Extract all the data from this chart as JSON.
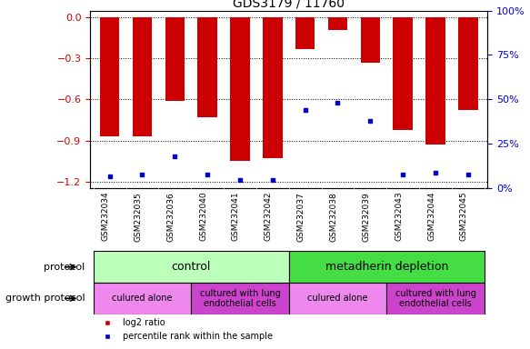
{
  "title": "GDS3179 / 11760",
  "samples": [
    "GSM232034",
    "GSM232035",
    "GSM232036",
    "GSM232040",
    "GSM232041",
    "GSM232042",
    "GSM232037",
    "GSM232038",
    "GSM232039",
    "GSM232043",
    "GSM232044",
    "GSM232045"
  ],
  "log2_ratio": [
    -0.87,
    -0.87,
    -0.61,
    -0.73,
    -1.05,
    -1.03,
    -0.23,
    -0.09,
    -0.33,
    -0.82,
    -0.93,
    -0.68
  ],
  "percentile_rank": [
    0.07,
    0.08,
    0.18,
    0.08,
    0.05,
    0.05,
    0.44,
    0.48,
    0.38,
    0.08,
    0.09,
    0.08
  ],
  "bar_color": "#cc0000",
  "dot_color": "#0000cc",
  "ylim_left": [
    -1.25,
    0.05
  ],
  "yticks_left": [
    0.0,
    -0.3,
    -0.6,
    -0.9,
    -1.2
  ],
  "ylim_right": [
    0.0,
    1.0
  ],
  "yticks_right": [
    0.0,
    0.25,
    0.5,
    0.75,
    1.0
  ],
  "ytick_labels_right": [
    "0%",
    "25%",
    "50%",
    "75%",
    "100%"
  ],
  "left_axis_color": "#cc0000",
  "right_axis_color": "#0000cc",
  "protocol_control_color": "#bbffbb",
  "protocol_metadherin_color": "#44dd44",
  "growth_alone_color": "#ee88ee",
  "growth_lung_color": "#cc44cc",
  "xtick_bg_color": "#cccccc",
  "legend_items": [
    "log2 ratio",
    "percentile rank within the sample"
  ],
  "protocol_label": "protocol",
  "growth_protocol_label": "growth protocol"
}
